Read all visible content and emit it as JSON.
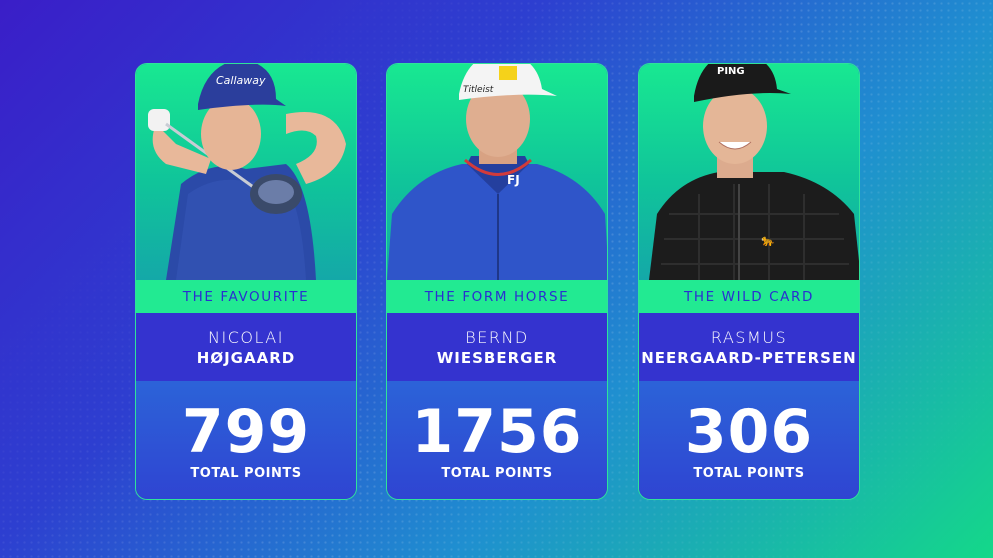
{
  "cards": [
    {
      "label": "THE FAVOURITE",
      "first_name": "NICOLAI",
      "last_name": "HØJGAARD",
      "points": "799",
      "points_label": "TOTAL POINTS",
      "cap_text": "Callaway",
      "shirt_color": "#2b4aa8",
      "cap_color": "#2b3e9c"
    },
    {
      "label": "THE FORM HORSE",
      "first_name": "BERND",
      "last_name": "WIESBERGER",
      "points": "1756",
      "points_label": "TOTAL POINTS",
      "cap_text": "Titleist",
      "shirt_color": "#2f55c9",
      "cap_color": "#f4f4f4"
    },
    {
      "label": "THE WILD CARD",
      "first_name": "RASMUS",
      "last_name": "NEERGAARD-PETERSEN",
      "points": "306",
      "points_label": "TOTAL POINTS",
      "cap_text": "PING",
      "shirt_color": "#1c1c1c",
      "cap_color": "#1a1a1a"
    }
  ]
}
